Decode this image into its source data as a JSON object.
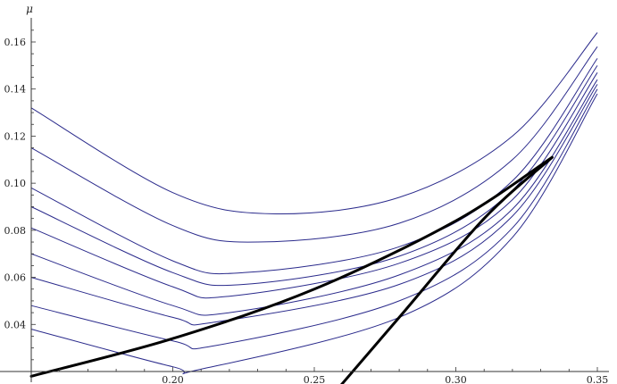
{
  "chart_data": {
    "type": "line",
    "title": "",
    "xlabel": "",
    "ylabel": "μ",
    "xlim": [
      0.15,
      0.355
    ],
    "ylim": [
      0.02,
      0.168
    ],
    "x_ticks": [
      "0.20",
      "0.25",
      "0.30",
      "0.35"
    ],
    "y_ticks": [
      "0.04",
      "0.06",
      "0.08",
      "0.10",
      "0.12",
      "0.14",
      "0.16"
    ],
    "grid": false,
    "legend": "none",
    "colors": {
      "family": "#2b2b8c",
      "envelope": "#000000"
    },
    "curve_family": [
      {
        "x": [
          0.15,
          0.2,
          0.235,
          0.28,
          0.32,
          0.35
        ],
        "y": [
          0.132,
          0.096,
          0.087,
          0.094,
          0.12,
          0.164
        ]
      },
      {
        "x": [
          0.15,
          0.2,
          0.23,
          0.28,
          0.32,
          0.35
        ],
        "y": [
          0.115,
          0.082,
          0.075,
          0.083,
          0.11,
          0.158
        ]
      },
      {
        "x": [
          0.15,
          0.2,
          0.225,
          0.28,
          0.32,
          0.35
        ],
        "y": [
          0.098,
          0.067,
          0.062,
          0.073,
          0.101,
          0.153
        ]
      },
      {
        "x": [
          0.15,
          0.2,
          0.225,
          0.28,
          0.32,
          0.35
        ],
        "y": [
          0.09,
          0.062,
          0.057,
          0.069,
          0.097,
          0.15
        ]
      },
      {
        "x": [
          0.15,
          0.2,
          0.22,
          0.28,
          0.32,
          0.35
        ],
        "y": [
          0.081,
          0.056,
          0.052,
          0.066,
          0.093,
          0.147
        ]
      },
      {
        "x": [
          0.15,
          0.2,
          0.22,
          0.28,
          0.32,
          0.35
        ],
        "y": [
          0.07,
          0.048,
          0.045,
          0.061,
          0.089,
          0.144
        ]
      },
      {
        "x": [
          0.15,
          0.2,
          0.215,
          0.28,
          0.32,
          0.35
        ],
        "y": [
          0.06,
          0.043,
          0.041,
          0.057,
          0.086,
          0.142
        ]
      },
      {
        "x": [
          0.15,
          0.2,
          0.215,
          0.28,
          0.32,
          0.35
        ],
        "y": [
          0.048,
          0.033,
          0.031,
          0.05,
          0.081,
          0.14
        ]
      },
      {
        "x": [
          0.15,
          0.2,
          0.21,
          0.28,
          0.32,
          0.35
        ],
        "y": [
          0.038,
          0.022,
          0.021,
          0.043,
          0.077,
          0.138
        ]
      }
    ],
    "envelope_curves": [
      {
        "x": [
          0.15,
          0.2,
          0.25,
          0.3,
          0.334
        ],
        "y": [
          0.018,
          0.034,
          0.055,
          0.084,
          0.111
        ]
      },
      {
        "x": [
          0.255,
          0.28,
          0.31,
          0.334
        ],
        "y": [
          0.008,
          0.043,
          0.085,
          0.111
        ]
      }
    ]
  }
}
